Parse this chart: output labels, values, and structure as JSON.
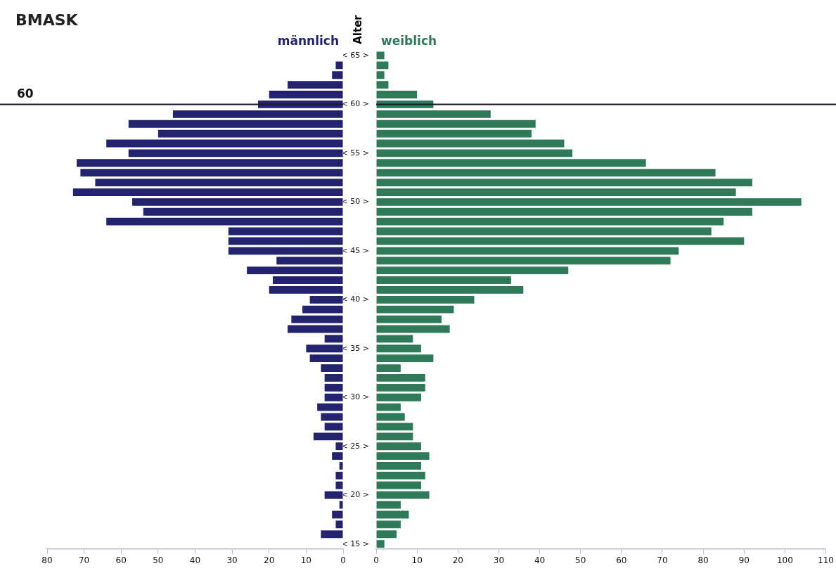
{
  "chart_data": [
    {
      "type": "bar",
      "title": "BMASK",
      "orientation": "horizontal",
      "tick_labels": "x",
      "categories": [
        "< 65 >",
        null,
        null,
        null,
        null,
        "< 60 >",
        null,
        null,
        null,
        null,
        "< 55 >",
        null,
        null,
        null,
        null,
        "< 50 >",
        null,
        null,
        null,
        null,
        "< 45 >",
        null,
        null,
        null,
        null,
        "< 40 >",
        null,
        null,
        null,
        null,
        "< 35 >",
        null,
        null,
        null,
        null,
        "< 30 >",
        null,
        null,
        null,
        null,
        "< 25 >",
        null,
        null,
        null,
        null,
        "< 20 >",
        null,
        null,
        null,
        null,
        "< 15 >"
      ],
      "series": [
        {
          "name": "männlich",
          "color": "#23236f",
          "values": [
            0,
            2,
            3,
            15,
            20,
            23,
            46,
            58,
            50,
            64,
            58,
            72,
            71,
            67,
            73,
            57,
            54,
            64,
            31,
            31,
            31,
            18,
            26,
            19,
            20,
            9,
            11,
            14,
            15,
            5,
            10,
            9,
            6,
            5,
            5,
            5,
            7,
            6,
            5,
            8,
            2,
            3,
            1,
            2,
            2,
            5,
            1,
            3,
            2,
            6,
            0
          ]
        }
      ],
      "xlim": [
        80,
        0
      ],
      "xticks": [
        0,
        10,
        20,
        30,
        40,
        50,
        60,
        70,
        80
      ],
      "ref_lines": [
        {
          "axis": "y",
          "value": "< 60 >",
          "label": "60",
          "color": "#1a1a2e"
        }
      ]
    },
    {
      "type": "bar",
      "ylabel": "Alter",
      "orientation": "horizontal",
      "categories": [
        "< 65 >",
        null,
        null,
        null,
        null,
        "< 60 >",
        null,
        null,
        null,
        null,
        "< 55 >",
        null,
        null,
        null,
        null,
        "< 50 >",
        null,
        null,
        null,
        null,
        "< 45 >",
        null,
        null,
        null,
        null,
        "< 40 >",
        null,
        null,
        null,
        null,
        "< 35 >",
        null,
        null,
        null,
        null,
        "< 30 >",
        null,
        null,
        null,
        null,
        "< 25 >",
        null,
        null,
        null,
        null,
        "< 20 >",
        null,
        null,
        null,
        null,
        "< 15 >"
      ],
      "series": [
        {
          "name": "weiblich",
          "color": "#2f7a58",
          "values": [
            2,
            3,
            2,
            3,
            10,
            14,
            28,
            39,
            38,
            46,
            48,
            66,
            83,
            92,
            88,
            104,
            92,
            85,
            82,
            90,
            74,
            72,
            47,
            33,
            36,
            24,
            19,
            16,
            18,
            9,
            11,
            14,
            6,
            12,
            12,
            11,
            6,
            7,
            9,
            9,
            11,
            13,
            11,
            12,
            11,
            13,
            6,
            8,
            6,
            5,
            2
          ]
        }
      ],
      "xlim": [
        0,
        110
      ],
      "xticks": [
        0,
        10,
        20,
        30,
        40,
        50,
        60,
        70,
        80,
        90,
        100,
        110
      ],
      "ref_lines": [
        {
          "axis": "y",
          "value": "< 60 >",
          "label": null,
          "color": "#1a1a2e"
        }
      ]
    }
  ]
}
